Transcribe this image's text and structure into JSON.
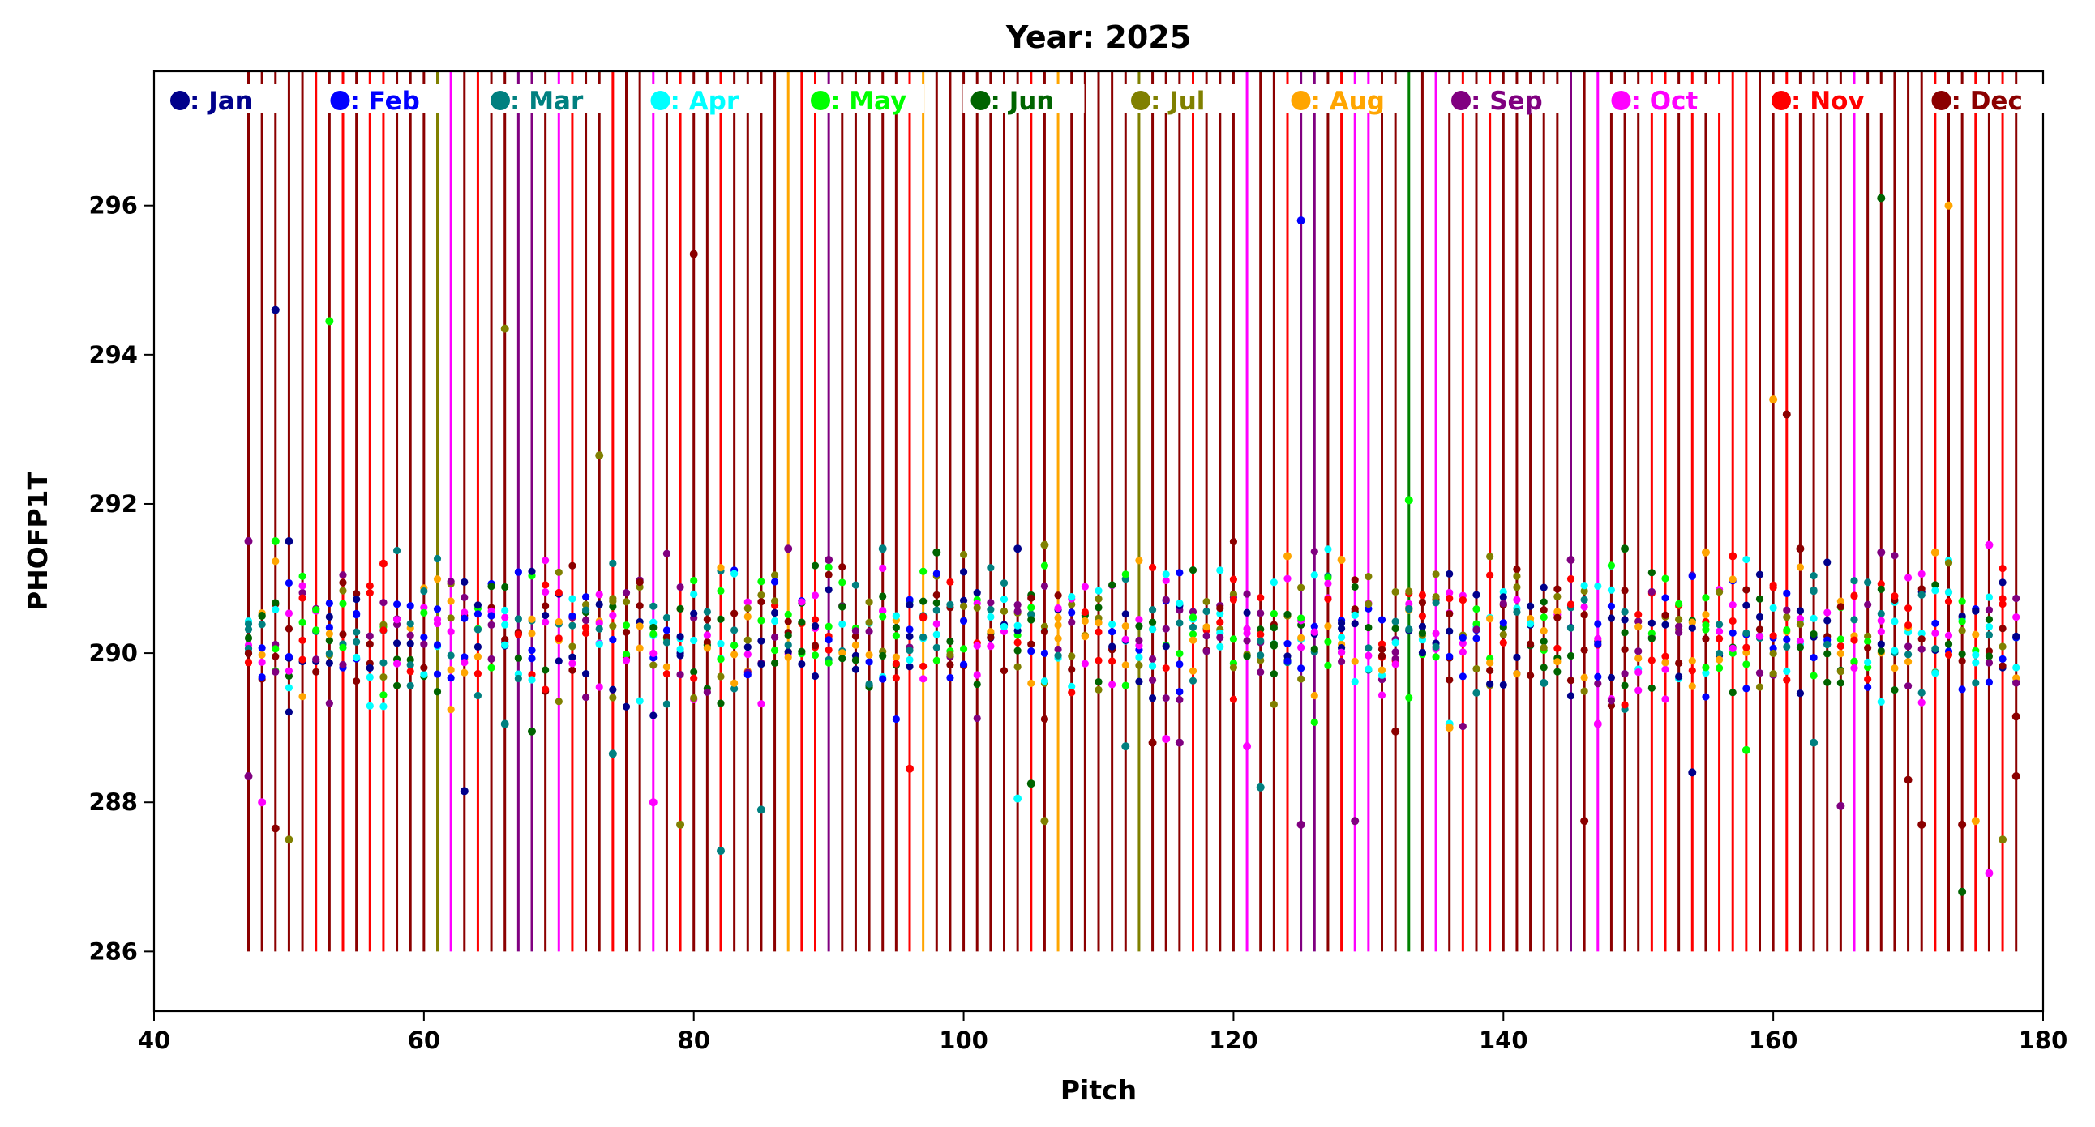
{
  "chart_data": {
    "type": "scatter",
    "title": "Year: 2025",
    "xlabel": "Pitch",
    "ylabel": "PHOFP1T",
    "xlim": [
      40,
      180
    ],
    "ylim": [
      285.2,
      297.8
    ],
    "xticks": [
      40,
      60,
      80,
      100,
      120,
      140,
      160,
      180
    ],
    "yticks": [
      286,
      288,
      290,
      292,
      294,
      296
    ],
    "stem_bottom": 286,
    "grid": false,
    "legend_placement": "top, single row inside plot",
    "legend": [
      {
        "label": ": Jan",
        "color": "#00008b"
      },
      {
        "label": ": Feb",
        "color": "#0000ff"
      },
      {
        "label": ": Mar",
        "color": "#008080"
      },
      {
        "label": ": Apr",
        "color": "#00ffff"
      },
      {
        "label": ": May",
        "color": "#00ff00"
      },
      {
        "label": ": Jun",
        "color": "#006400"
      },
      {
        "label": ": Jul",
        "color": "#808000"
      },
      {
        "label": ": Aug",
        "color": "#ffa500"
      },
      {
        "label": ": Sep",
        "color": "#800080"
      },
      {
        "label": ": Oct",
        "color": "#ff00ff"
      },
      {
        "label": ": Nov",
        "color": "#ff0000"
      },
      {
        "label": ": Dec",
        "color": "#8b0000"
      }
    ],
    "stem_lines": [
      {
        "x": 47,
        "color": "#8b0000"
      },
      {
        "x": 48,
        "color": "#8b0000"
      },
      {
        "x": 49,
        "color": "#8b0000"
      },
      {
        "x": 50,
        "color": "#8b0000"
      },
      {
        "x": 51,
        "color": "#8b0000"
      },
      {
        "x": 52,
        "color": "#ff0000"
      },
      {
        "x": 53,
        "color": "#8b0000"
      },
      {
        "x": 54,
        "color": "#ff0000"
      },
      {
        "x": 55,
        "color": "#8b0000"
      },
      {
        "x": 56,
        "color": "#ff0000"
      },
      {
        "x": 57,
        "color": "#ff0000"
      },
      {
        "x": 58,
        "color": "#8b0000"
      },
      {
        "x": 59,
        "color": "#8b0000"
      },
      {
        "x": 60,
        "color": "#8b0000"
      },
      {
        "x": 61,
        "color": "#808000"
      },
      {
        "x": 62,
        "color": "#ff00ff"
      },
      {
        "x": 63,
        "color": "#8b0000"
      },
      {
        "x": 64,
        "color": "#ff0000"
      },
      {
        "x": 65,
        "color": "#8b0000"
      },
      {
        "x": 66,
        "color": "#8b0000"
      },
      {
        "x": 67,
        "color": "#800080"
      },
      {
        "x": 68,
        "color": "#800080"
      },
      {
        "x": 69,
        "color": "#8b0000"
      },
      {
        "x": 70,
        "color": "#ff00ff"
      },
      {
        "x": 71,
        "color": "#ff0000"
      },
      {
        "x": 72,
        "color": "#8b0000"
      },
      {
        "x": 73,
        "color": "#8b0000"
      },
      {
        "x": 74,
        "color": "#ff0000"
      },
      {
        "x": 75,
        "color": "#8b0000"
      },
      {
        "x": 76,
        "color": "#8b0000"
      },
      {
        "x": 77,
        "color": "#ff00ff"
      },
      {
        "x": 78,
        "color": "#8b0000"
      },
      {
        "x": 79,
        "color": "#ff0000"
      },
      {
        "x": 80,
        "color": "#8b0000"
      },
      {
        "x": 81,
        "color": "#8b0000"
      },
      {
        "x": 82,
        "color": "#ff0000"
      },
      {
        "x": 83,
        "color": "#8b0000"
      },
      {
        "x": 84,
        "color": "#8b0000"
      },
      {
        "x": 85,
        "color": "#8b0000"
      },
      {
        "x": 86,
        "color": "#8b0000"
      },
      {
        "x": 87,
        "color": "#ffa500"
      },
      {
        "x": 88,
        "color": "#ff0000"
      },
      {
        "x": 89,
        "color": "#ff0000"
      },
      {
        "x": 90,
        "color": "#800080"
      },
      {
        "x": 91,
        "color": "#8b0000"
      },
      {
        "x": 92,
        "color": "#8b0000"
      },
      {
        "x": 93,
        "color": "#8b0000"
      },
      {
        "x": 94,
        "color": "#8b0000"
      },
      {
        "x": 95,
        "color": "#8b0000"
      },
      {
        "x": 96,
        "color": "#ff0000"
      },
      {
        "x": 97,
        "color": "#ffa500"
      },
      {
        "x": 98,
        "color": "#8b0000"
      },
      {
        "x": 99,
        "color": "#8b0000"
      },
      {
        "x": 100,
        "color": "#8b0000"
      },
      {
        "x": 101,
        "color": "#8b0000"
      },
      {
        "x": 102,
        "color": "#8b0000"
      },
      {
        "x": 103,
        "color": "#8b0000"
      },
      {
        "x": 104,
        "color": "#8b0000"
      },
      {
        "x": 105,
        "color": "#ff0000"
      },
      {
        "x": 106,
        "color": "#8b0000"
      },
      {
        "x": 107,
        "color": "#ffa500"
      },
      {
        "x": 108,
        "color": "#8b0000"
      },
      {
        "x": 109,
        "color": "#8b0000"
      },
      {
        "x": 110,
        "color": "#8b0000"
      },
      {
        "x": 111,
        "color": "#8b0000"
      },
      {
        "x": 112,
        "color": "#8b0000"
      },
      {
        "x": 113,
        "color": "#808000"
      },
      {
        "x": 114,
        "color": "#8b0000"
      },
      {
        "x": 115,
        "color": "#8b0000"
      },
      {
        "x": 116,
        "color": "#8b0000"
      },
      {
        "x": 117,
        "color": "#ff0000"
      },
      {
        "x": 118,
        "color": "#8b0000"
      },
      {
        "x": 119,
        "color": "#8b0000"
      },
      {
        "x": 120,
        "color": "#8b0000"
      },
      {
        "x": 121,
        "color": "#ff00ff"
      },
      {
        "x": 122,
        "color": "#8b0000"
      },
      {
        "x": 123,
        "color": "#8b0000"
      },
      {
        "x": 124,
        "color": "#ff0000"
      },
      {
        "x": 125,
        "color": "#800080"
      },
      {
        "x": 126,
        "color": "#800080"
      },
      {
        "x": 127,
        "color": "#8b0000"
      },
      {
        "x": 128,
        "color": "#ff0000"
      },
      {
        "x": 129,
        "color": "#ff00ff"
      },
      {
        "x": 130,
        "color": "#ff00ff"
      },
      {
        "x": 131,
        "color": "#8b0000"
      },
      {
        "x": 132,
        "color": "#8b0000"
      },
      {
        "x": 133,
        "color": "#008000"
      },
      {
        "x": 134,
        "color": "#8b0000"
      },
      {
        "x": 135,
        "color": "#ff00ff"
      },
      {
        "x": 136,
        "color": "#8b0000"
      },
      {
        "x": 137,
        "color": "#ff0000"
      },
      {
        "x": 138,
        "color": "#8b0000"
      },
      {
        "x": 139,
        "color": "#ff0000"
      },
      {
        "x": 140,
        "color": "#8b0000"
      },
      {
        "x": 141,
        "color": "#8b0000"
      },
      {
        "x": 142,
        "color": "#8b0000"
      },
      {
        "x": 143,
        "color": "#8b0000"
      },
      {
        "x": 144,
        "color": "#8b0000"
      },
      {
        "x": 145,
        "color": "#800080"
      },
      {
        "x": 146,
        "color": "#8b0000"
      },
      {
        "x": 147,
        "color": "#ff00ff"
      },
      {
        "x": 148,
        "color": "#8b0000"
      },
      {
        "x": 149,
        "color": "#8b0000"
      },
      {
        "x": 150,
        "color": "#8b0000"
      },
      {
        "x": 151,
        "color": "#ff0000"
      },
      {
        "x": 152,
        "color": "#ff0000"
      },
      {
        "x": 153,
        "color": "#8b0000"
      },
      {
        "x": 154,
        "color": "#ff0000"
      },
      {
        "x": 155,
        "color": "#8b0000"
      },
      {
        "x": 156,
        "color": "#ff0000"
      },
      {
        "x": 157,
        "color": "#ff0000"
      },
      {
        "x": 158,
        "color": "#ff0000"
      },
      {
        "x": 159,
        "color": "#8b0000"
      },
      {
        "x": 160,
        "color": "#8b0000"
      },
      {
        "x": 161,
        "color": "#ff0000"
      },
      {
        "x": 162,
        "color": "#8b0000"
      },
      {
        "x": 163,
        "color": "#8b0000"
      },
      {
        "x": 164,
        "color": "#8b0000"
      },
      {
        "x": 165,
        "color": "#8b0000"
      },
      {
        "x": 166,
        "color": "#ff00ff"
      },
      {
        "x": 167,
        "color": "#8b0000"
      },
      {
        "x": 168,
        "color": "#8b0000"
      },
      {
        "x": 169,
        "color": "#8b0000"
      },
      {
        "x": 170,
        "color": "#8b0000"
      },
      {
        "x": 171,
        "color": "#8b0000"
      },
      {
        "x": 172,
        "color": "#ff0000"
      },
      {
        "x": 173,
        "color": "#8b0000"
      },
      {
        "x": 174,
        "color": "#8b0000"
      },
      {
        "x": 175,
        "color": "#ff0000"
      },
      {
        "x": 176,
        "color": "#8b0000"
      },
      {
        "x": 177,
        "color": "#ff0000"
      },
      {
        "x": 178,
        "color": "#8b0000"
      }
    ],
    "points": [
      {
        "x": 49,
        "y": 294.6,
        "month": "Jan"
      },
      {
        "x": 53,
        "y": 294.45,
        "month": "May"
      },
      {
        "x": 66,
        "y": 294.35,
        "month": "Jul"
      },
      {
        "x": 73,
        "y": 292.65,
        "month": "Jul"
      },
      {
        "x": 80,
        "y": 295.35,
        "month": "Dec"
      },
      {
        "x": 125,
        "y": 295.8,
        "month": "Feb"
      },
      {
        "x": 133,
        "y": 292.05,
        "month": "May"
      },
      {
        "x": 160,
        "y": 293.4,
        "month": "Aug"
      },
      {
        "x": 161,
        "y": 293.2,
        "month": "Dec"
      },
      {
        "x": 168,
        "y": 296.1,
        "month": "Jun"
      },
      {
        "x": 173,
        "y": 296.0,
        "month": "Aug"
      },
      {
        "x": 47,
        "y": 291.5,
        "month": "Sep"
      },
      {
        "x": 50,
        "y": 291.5,
        "month": "Jan"
      },
      {
        "x": 49,
        "y": 291.5,
        "month": "May"
      },
      {
        "x": 48,
        "y": 288.0,
        "month": "Oct"
      },
      {
        "x": 49,
        "y": 287.65,
        "month": "Dec"
      },
      {
        "x": 50,
        "y": 287.5,
        "month": "Jul"
      },
      {
        "x": 47,
        "y": 288.35,
        "month": "Sep"
      },
      {
        "x": 63,
        "y": 288.15,
        "month": "Jan"
      },
      {
        "x": 66,
        "y": 289.05,
        "month": "Mar"
      },
      {
        "x": 68,
        "y": 288.95,
        "month": "Jun"
      },
      {
        "x": 74,
        "y": 288.65,
        "month": "Mar"
      },
      {
        "x": 77,
        "y": 288.0,
        "month": "Oct"
      },
      {
        "x": 79,
        "y": 287.7,
        "month": "Jul"
      },
      {
        "x": 82,
        "y": 287.35,
        "month": "Mar"
      },
      {
        "x": 85,
        "y": 287.9,
        "month": "Mar"
      },
      {
        "x": 96,
        "y": 288.45,
        "month": "Nov"
      },
      {
        "x": 104,
        "y": 288.05,
        "month": "Apr"
      },
      {
        "x": 105,
        "y": 288.25,
        "month": "Jun"
      },
      {
        "x": 106,
        "y": 287.75,
        "month": "Jul"
      },
      {
        "x": 112,
        "y": 288.75,
        "month": "Mar"
      },
      {
        "x": 114,
        "y": 288.8,
        "month": "Dec"
      },
      {
        "x": 115,
        "y": 288.85,
        "month": "Oct"
      },
      {
        "x": 116,
        "y": 288.8,
        "month": "Sep"
      },
      {
        "x": 121,
        "y": 288.75,
        "month": "Oct"
      },
      {
        "x": 122,
        "y": 288.2,
        "month": "Mar"
      },
      {
        "x": 125,
        "y": 287.7,
        "month": "Sep"
      },
      {
        "x": 129,
        "y": 287.75,
        "month": "Sep"
      },
      {
        "x": 132,
        "y": 288.95,
        "month": "Dec"
      },
      {
        "x": 136,
        "y": 289.05,
        "month": "Apr"
      },
      {
        "x": 143,
        "y": 289.6,
        "month": "Mar"
      },
      {
        "x": 146,
        "y": 287.75,
        "month": "Dec"
      },
      {
        "x": 147,
        "y": 289.05,
        "month": "Oct"
      },
      {
        "x": 154,
        "y": 288.4,
        "month": "Jan"
      },
      {
        "x": 158,
        "y": 288.7,
        "month": "May"
      },
      {
        "x": 163,
        "y": 288.8,
        "month": "Mar"
      },
      {
        "x": 165,
        "y": 287.95,
        "month": "Sep"
      },
      {
        "x": 170,
        "y": 288.3,
        "month": "Dec"
      },
      {
        "x": 171,
        "y": 287.7,
        "month": "Dec"
      },
      {
        "x": 174,
        "y": 286.8,
        "month": "Jun"
      },
      {
        "x": 174,
        "y": 287.7,
        "month": "Dec"
      },
      {
        "x": 175,
        "y": 287.75,
        "month": "Aug"
      },
      {
        "x": 176,
        "y": 287.05,
        "month": "Oct"
      },
      {
        "x": 177,
        "y": 287.5,
        "month": "Jul"
      },
      {
        "x": 178,
        "y": 288.35,
        "month": "Dec"
      },
      {
        "x": 178,
        "y": 289.15,
        "month": "Dec"
      },
      {
        "x": 136,
        "y": 289.0,
        "month": "Aug"
      },
      {
        "x": 128,
        "y": 291.25,
        "month": "Aug"
      },
      {
        "x": 124,
        "y": 291.3,
        "month": "Aug"
      },
      {
        "x": 98,
        "y": 291.35,
        "month": "Jun"
      },
      {
        "x": 94,
        "y": 291.4,
        "month": "Mar"
      },
      {
        "x": 104,
        "y": 291.4,
        "month": "Jan"
      },
      {
        "x": 106,
        "y": 291.45,
        "month": "Jul"
      },
      {
        "x": 87,
        "y": 291.4,
        "month": "Sep"
      },
      {
        "x": 90,
        "y": 291.25,
        "month": "Sep"
      },
      {
        "x": 145,
        "y": 291.25,
        "month": "Sep"
      },
      {
        "x": 149,
        "y": 291.4,
        "month": "Jun"
      },
      {
        "x": 155,
        "y": 291.35,
        "month": "Aug"
      },
      {
        "x": 157,
        "y": 291.3,
        "month": "Nov"
      },
      {
        "x": 162,
        "y": 291.4,
        "month": "Dec"
      },
      {
        "x": 168,
        "y": 291.35,
        "month": "Sep"
      },
      {
        "x": 172,
        "y": 291.35,
        "month": "Aug"
      },
      {
        "x": 176,
        "y": 291.45,
        "month": "Oct"
      },
      {
        "x": 57,
        "y": 291.2,
        "month": "Nov"
      }
    ],
    "cluster_center": 290.3
  }
}
